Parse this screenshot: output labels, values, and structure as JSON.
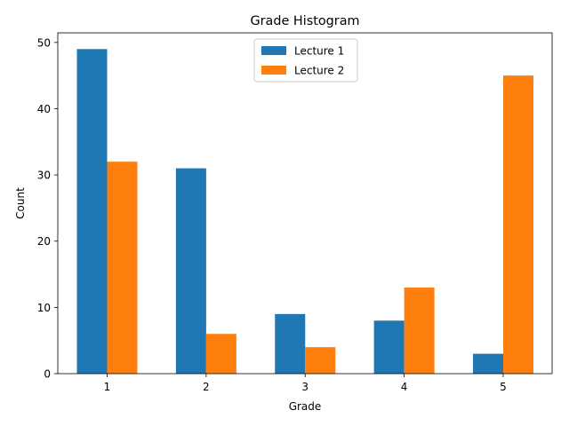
{
  "chart_data": {
    "type": "bar",
    "title": "Grade Histogram",
    "xlabel": "Grade",
    "ylabel": "Count",
    "categories": [
      "1",
      "2",
      "3",
      "4",
      "5"
    ],
    "series": [
      {
        "name": "Lecture 1",
        "color": "#1f77b4",
        "values": [
          49,
          31,
          9,
          8,
          3
        ]
      },
      {
        "name": "Lecture 2",
        "color": "#ff7f0e",
        "values": [
          32,
          6,
          4,
          13,
          45
        ]
      }
    ],
    "ylim": [
      0,
      51.45
    ],
    "yticks": [
      0,
      10,
      20,
      30,
      40,
      50
    ],
    "grid": false,
    "legend_position": "top-center"
  }
}
